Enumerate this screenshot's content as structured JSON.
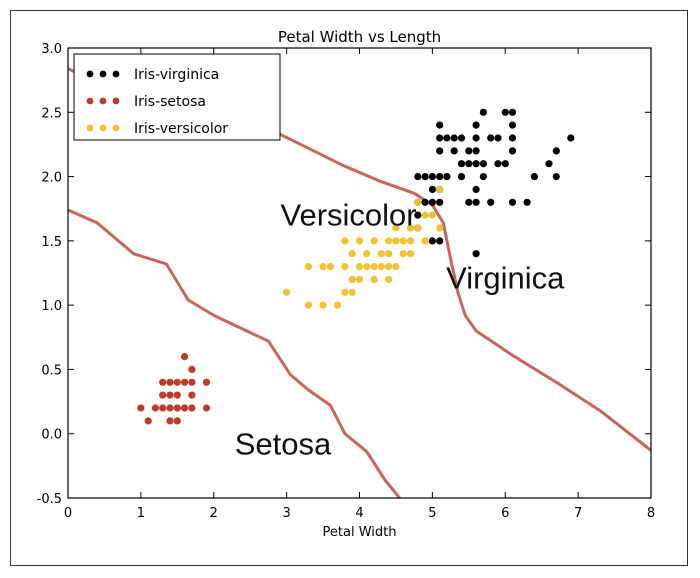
{
  "chart_data": {
    "type": "scatter",
    "title": "Petal Width vs Length",
    "xlabel": "Petal Width",
    "ylabel": "",
    "xlim": [
      0,
      8
    ],
    "ylim": [
      -0.5,
      3.0
    ],
    "xticks": [
      "0",
      "1",
      "2",
      "3",
      "4",
      "5",
      "6",
      "7",
      "8"
    ],
    "yticks": [
      "-0.5",
      "0.0",
      "0.5",
      "1.0",
      "1.5",
      "2.0",
      "2.5",
      "3.0"
    ],
    "legend_position": "top-left",
    "grid": false,
    "series": [
      {
        "name": "Iris-virginica",
        "color": "#000000",
        "points": [
          [
            4.8,
            1.8
          ],
          [
            4.9,
            1.8
          ],
          [
            5.0,
            1.8
          ],
          [
            5.1,
            1.8
          ],
          [
            5.5,
            1.8
          ],
          [
            5.6,
            1.8
          ],
          [
            5.8,
            1.8
          ],
          [
            6.1,
            1.8
          ],
          [
            6.3,
            1.8
          ],
          [
            5.1,
            1.9
          ],
          [
            5.0,
            1.9
          ],
          [
            5.6,
            1.9
          ],
          [
            5.4,
            2.1
          ],
          [
            5.0,
            2.0
          ],
          [
            4.9,
            2.0
          ],
          [
            5.1,
            2.0
          ],
          [
            5.2,
            2.0
          ],
          [
            4.8,
            2.0
          ],
          [
            6.4,
            2.0
          ],
          [
            6.7,
            2.0
          ],
          [
            5.7,
            2.0
          ],
          [
            5.4,
            2.0
          ],
          [
            5.6,
            2.1
          ],
          [
            5.7,
            2.1
          ],
          [
            5.9,
            2.1
          ],
          [
            6.0,
            2.1
          ],
          [
            6.6,
            2.1
          ],
          [
            5.5,
            2.1
          ],
          [
            5.1,
            2.2
          ],
          [
            5.3,
            2.2
          ],
          [
            5.6,
            2.2
          ],
          [
            6.1,
            2.2
          ],
          [
            6.7,
            2.2
          ],
          [
            5.5,
            2.2
          ],
          [
            5.1,
            2.3
          ],
          [
            5.2,
            2.3
          ],
          [
            5.3,
            2.3
          ],
          [
            5.4,
            2.3
          ],
          [
            5.6,
            2.3
          ],
          [
            5.8,
            2.3
          ],
          [
            6.1,
            2.3
          ],
          [
            6.9,
            2.3
          ],
          [
            5.9,
            2.3
          ],
          [
            5.1,
            2.4
          ],
          [
            5.6,
            2.4
          ],
          [
            6.1,
            2.4
          ],
          [
            5.7,
            2.5
          ],
          [
            6.0,
            2.5
          ],
          [
            6.1,
            2.5
          ],
          [
            4.8,
            1.7
          ],
          [
            5.6,
            1.4
          ],
          [
            5.0,
            1.5
          ],
          [
            5.1,
            1.5
          ],
          [
            4.8,
            1.6
          ]
        ]
      },
      {
        "name": "Iris-setosa",
        "color": "#c0392b",
        "points": [
          [
            1.0,
            0.2
          ],
          [
            1.2,
            0.2
          ],
          [
            1.3,
            0.2
          ],
          [
            1.4,
            0.2
          ],
          [
            1.5,
            0.2
          ],
          [
            1.6,
            0.2
          ],
          [
            1.7,
            0.2
          ],
          [
            1.9,
            0.2
          ],
          [
            1.1,
            0.1
          ],
          [
            1.4,
            0.1
          ],
          [
            1.5,
            0.1
          ],
          [
            1.3,
            0.3
          ],
          [
            1.4,
            0.3
          ],
          [
            1.5,
            0.3
          ],
          [
            1.7,
            0.3
          ],
          [
            1.3,
            0.4
          ],
          [
            1.4,
            0.4
          ],
          [
            1.5,
            0.4
          ],
          [
            1.6,
            0.4
          ],
          [
            1.7,
            0.4
          ],
          [
            1.9,
            0.4
          ],
          [
            1.7,
            0.5
          ],
          [
            1.6,
            0.6
          ]
        ]
      },
      {
        "name": "Iris-versicolor",
        "color": "#f1c232",
        "points": [
          [
            3.0,
            1.1
          ],
          [
            3.3,
            1.0
          ],
          [
            3.5,
            1.0
          ],
          [
            3.7,
            1.0
          ],
          [
            3.9,
            1.1
          ],
          [
            3.8,
            1.1
          ],
          [
            3.9,
            1.2
          ],
          [
            4.0,
            1.2
          ],
          [
            4.2,
            1.2
          ],
          [
            4.4,
            1.2
          ],
          [
            3.9,
            1.2
          ],
          [
            3.5,
            1.3
          ],
          [
            3.6,
            1.3
          ],
          [
            3.8,
            1.3
          ],
          [
            4.0,
            1.3
          ],
          [
            4.1,
            1.3
          ],
          [
            4.2,
            1.3
          ],
          [
            4.3,
            1.3
          ],
          [
            4.4,
            1.3
          ],
          [
            4.5,
            1.3
          ],
          [
            3.3,
            1.3
          ],
          [
            3.9,
            1.4
          ],
          [
            4.1,
            1.4
          ],
          [
            4.3,
            1.4
          ],
          [
            4.4,
            1.4
          ],
          [
            4.6,
            1.4
          ],
          [
            4.7,
            1.4
          ],
          [
            4.2,
            1.5
          ],
          [
            4.5,
            1.5
          ],
          [
            4.6,
            1.5
          ],
          [
            4.7,
            1.5
          ],
          [
            4.9,
            1.5
          ],
          [
            4.0,
            1.5
          ],
          [
            3.8,
            1.5
          ],
          [
            4.4,
            1.5
          ],
          [
            4.5,
            1.6
          ],
          [
            4.7,
            1.6
          ],
          [
            4.8,
            1.6
          ],
          [
            5.1,
            1.6
          ],
          [
            4.9,
            1.7
          ],
          [
            5.0,
            1.7
          ],
          [
            4.8,
            1.8
          ],
          [
            5.1,
            1.9
          ]
        ]
      }
    ],
    "boundaries": [
      {
        "name": "setosa-versicolor",
        "points": [
          [
            0.0,
            1.74
          ],
          [
            0.4,
            1.64
          ],
          [
            0.9,
            1.4
          ],
          [
            1.35,
            1.32
          ],
          [
            1.65,
            1.04
          ],
          [
            2.0,
            0.92
          ],
          [
            2.45,
            0.8
          ],
          [
            2.75,
            0.72
          ],
          [
            3.05,
            0.46
          ],
          [
            3.3,
            0.34
          ],
          [
            3.6,
            0.22
          ],
          [
            3.8,
            0.0
          ],
          [
            4.1,
            -0.14
          ],
          [
            4.35,
            -0.36
          ],
          [
            4.55,
            -0.5
          ]
        ]
      },
      {
        "name": "versicolor-virginica",
        "points": [
          [
            0.0,
            2.84
          ],
          [
            0.5,
            2.7
          ],
          [
            1.3,
            2.54
          ],
          [
            2.1,
            2.44
          ],
          [
            2.8,
            2.36
          ],
          [
            3.3,
            2.22
          ],
          [
            3.8,
            2.08
          ],
          [
            4.3,
            1.96
          ],
          [
            4.75,
            1.87
          ],
          [
            5.0,
            1.78
          ],
          [
            5.15,
            1.64
          ],
          [
            5.25,
            1.36
          ],
          [
            5.35,
            1.1
          ],
          [
            5.45,
            0.92
          ],
          [
            5.6,
            0.8
          ],
          [
            6.1,
            0.61
          ],
          [
            6.7,
            0.4
          ],
          [
            7.3,
            0.18
          ],
          [
            8.0,
            -0.13
          ]
        ]
      }
    ],
    "annotations": [
      {
        "text": "Versicolor",
        "x": 3.85,
        "y": 1.62
      },
      {
        "text": "Virginica",
        "x": 6.0,
        "y": 1.13
      },
      {
        "text": "Setosa",
        "x": 2.95,
        "y": -0.16
      }
    ]
  }
}
